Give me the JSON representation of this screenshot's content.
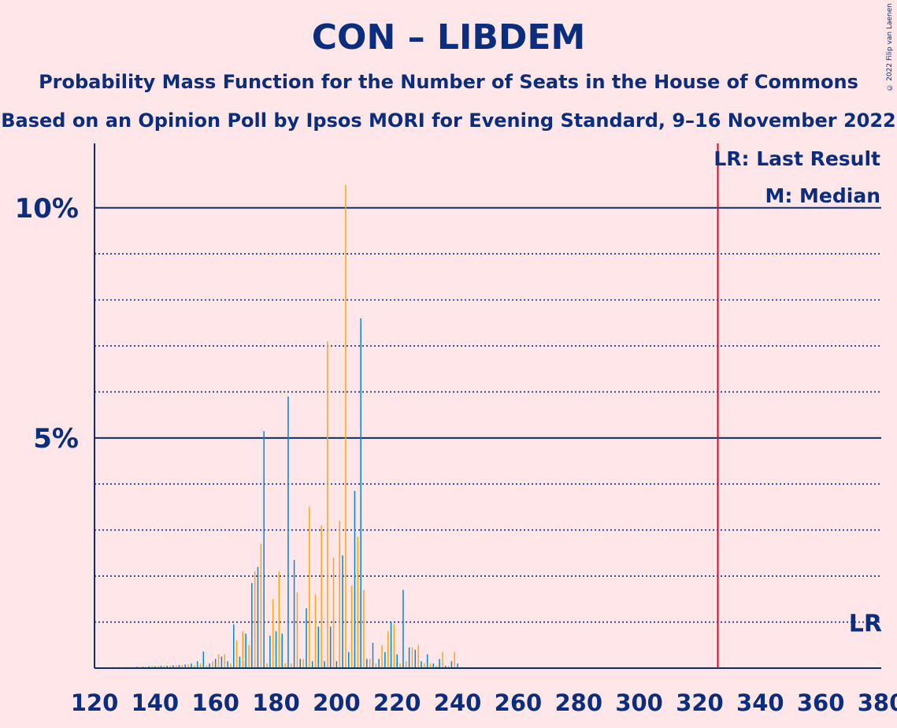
{
  "title": "CON – LIBDEM",
  "subtitle": "Probability Mass Function for the Number of Seats in the House of Commons",
  "subtitle2": "Based on an Opinion Poll by Ipsos MORI for Evening Standard, 9–16 November 2022",
  "copyright": "© 2022 Filip van Laenen",
  "colors": {
    "background": "#FFE6E9",
    "text": "#0A2D7E",
    "series_a": "#0087DC",
    "series_b": "#FAA61A",
    "last_result_line": "#C8102E"
  },
  "chart_data": {
    "type": "bar",
    "xlim": [
      120,
      380
    ],
    "ylim": [
      0,
      11.4
    ],
    "x_ticks": [
      "120",
      "140",
      "160",
      "180",
      "200",
      "220",
      "240",
      "260",
      "280",
      "300",
      "320",
      "340",
      "360",
      "380"
    ],
    "y_tick_labels": [
      {
        "value": 5,
        "label": "5%"
      },
      {
        "value": 10,
        "label": "10%"
      }
    ],
    "dotted_gridlines": [
      1,
      2,
      3,
      4,
      6,
      7,
      8,
      9
    ],
    "last_result_seat": 326,
    "last_result_marker": "LR",
    "legend": [
      "LR: Last Result",
      "M: Median"
    ],
    "series": [
      {
        "x": [
          126,
          128,
          130,
          132,
          134,
          136,
          138,
          140,
          142,
          144,
          146,
          148,
          150,
          152,
          154,
          156,
          158,
          160,
          162,
          164,
          166,
          168,
          170,
          172,
          174,
          176,
          178,
          180,
          182,
          184,
          186,
          188,
          190,
          192,
          194,
          196,
          198,
          200,
          202,
          204,
          206,
          208,
          210,
          212,
          214,
          216,
          218,
          220,
          222,
          224,
          226,
          228,
          230,
          232,
          234,
          236,
          238,
          240
        ],
        "values": [
          0.02,
          0.02,
          0.02,
          0.02,
          0.03,
          0.03,
          0.04,
          0.04,
          0.05,
          0.05,
          0.06,
          0.07,
          0.08,
          0.1,
          0.15,
          0.36,
          0.1,
          0.2,
          0.25,
          0.15,
          0.95,
          0.25,
          0.75,
          1.85,
          2.2,
          5.15,
          0.7,
          0.8,
          0.75,
          5.9,
          2.35,
          0.2,
          1.3,
          0.15,
          0.9,
          0.15,
          0.9,
          0.15,
          2.45,
          0.35,
          3.85,
          7.6,
          0.2,
          0.55,
          0.2,
          0.35,
          1.0,
          0.3,
          1.7,
          0.45,
          0.4,
          0.15,
          0.3,
          0.1,
          0.2,
          0.05,
          0.15,
          0.1
        ]
      },
      {
        "x": [
          127,
          129,
          131,
          133,
          135,
          137,
          139,
          141,
          143,
          145,
          147,
          149,
          151,
          153,
          155,
          157,
          159,
          161,
          163,
          165,
          167,
          169,
          171,
          173,
          175,
          177,
          179,
          181,
          183,
          185,
          187,
          189,
          191,
          193,
          195,
          197,
          199,
          201,
          203,
          205,
          207,
          209,
          211,
          213,
          215,
          217,
          219,
          221,
          223,
          225,
          227,
          229,
          231,
          233,
          235,
          237,
          239,
          241
        ],
        "values": [
          0.02,
          0.02,
          0.02,
          0.02,
          0.03,
          0.03,
          0.04,
          0.04,
          0.05,
          0.05,
          0.06,
          0.07,
          0.08,
          0.06,
          0.1,
          0.05,
          0.15,
          0.3,
          0.3,
          0.1,
          0.6,
          0.8,
          0.5,
          2.1,
          2.7,
          0.1,
          1.5,
          2.1,
          0.1,
          0.1,
          1.65,
          0.2,
          3.5,
          1.6,
          3.1,
          7.1,
          2.4,
          3.2,
          10.5,
          1.8,
          2.85,
          1.7,
          0.2,
          0.1,
          0.5,
          0.8,
          0.95,
          0.1,
          0.15,
          0.45,
          0.5,
          0.1,
          0.1,
          0.05,
          0.35,
          0.05,
          0.35,
          0.02
        ]
      }
    ]
  }
}
